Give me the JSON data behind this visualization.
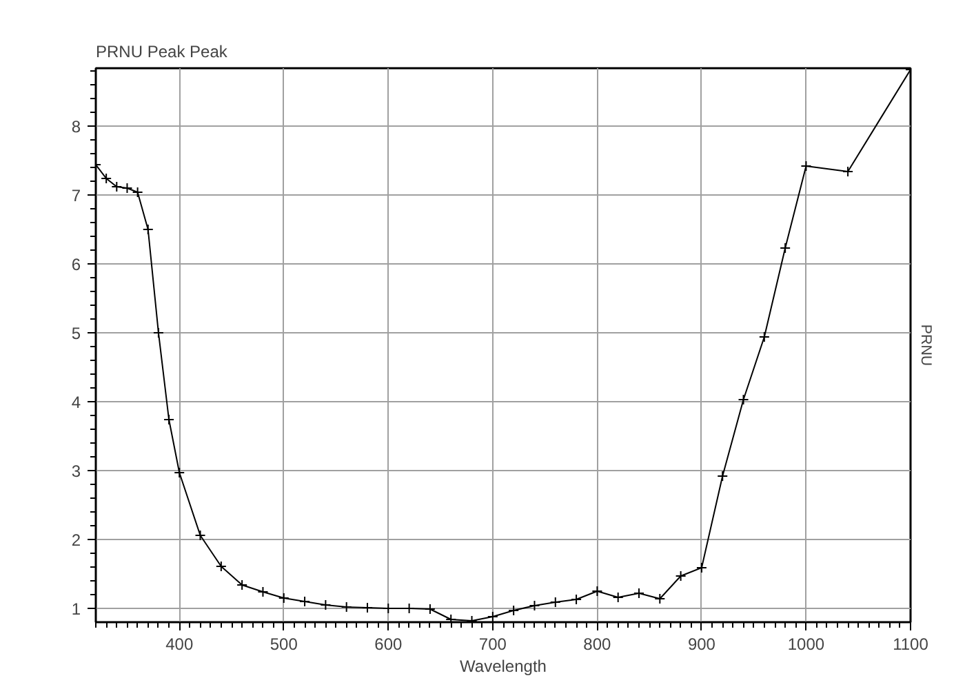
{
  "chart_data": {
    "type": "line",
    "title": "PRNU Peak Peak",
    "xlabel": "Wavelength",
    "ylabel": "PRNU",
    "x": [
      320,
      330,
      340,
      350,
      360,
      370,
      380,
      390,
      400,
      420,
      440,
      460,
      480,
      500,
      520,
      540,
      560,
      580,
      600,
      620,
      640,
      660,
      680,
      700,
      720,
      740,
      760,
      780,
      800,
      820,
      840,
      860,
      880,
      900,
      920,
      940,
      960,
      980,
      1000,
      1040,
      1100
    ],
    "series": [
      {
        "color": "#000000",
        "values": [
          7.44,
          7.24,
          7.12,
          7.1,
          7.04,
          6.5,
          5.0,
          3.74,
          2.97,
          2.06,
          1.61,
          1.34,
          1.24,
          1.15,
          1.1,
          1.05,
          1.02,
          1.01,
          1.0,
          1.0,
          0.99,
          0.84,
          0.82,
          0.88,
          0.97,
          1.04,
          1.09,
          1.13,
          1.25,
          1.16,
          1.22,
          1.14,
          1.47,
          1.59,
          2.92,
          4.03,
          4.94,
          6.23,
          7.42,
          7.34,
          8.82
        ]
      }
    ],
    "xlim": [
      320,
      1100
    ],
    "ylim": [
      0.8,
      8.84
    ],
    "xticks": [
      400,
      500,
      600,
      700,
      800,
      900,
      1000,
      1100
    ],
    "yticks": [
      1,
      2,
      3,
      4,
      5,
      6,
      7,
      8
    ],
    "grid": true,
    "marker": "cross",
    "line_style": "solid"
  }
}
